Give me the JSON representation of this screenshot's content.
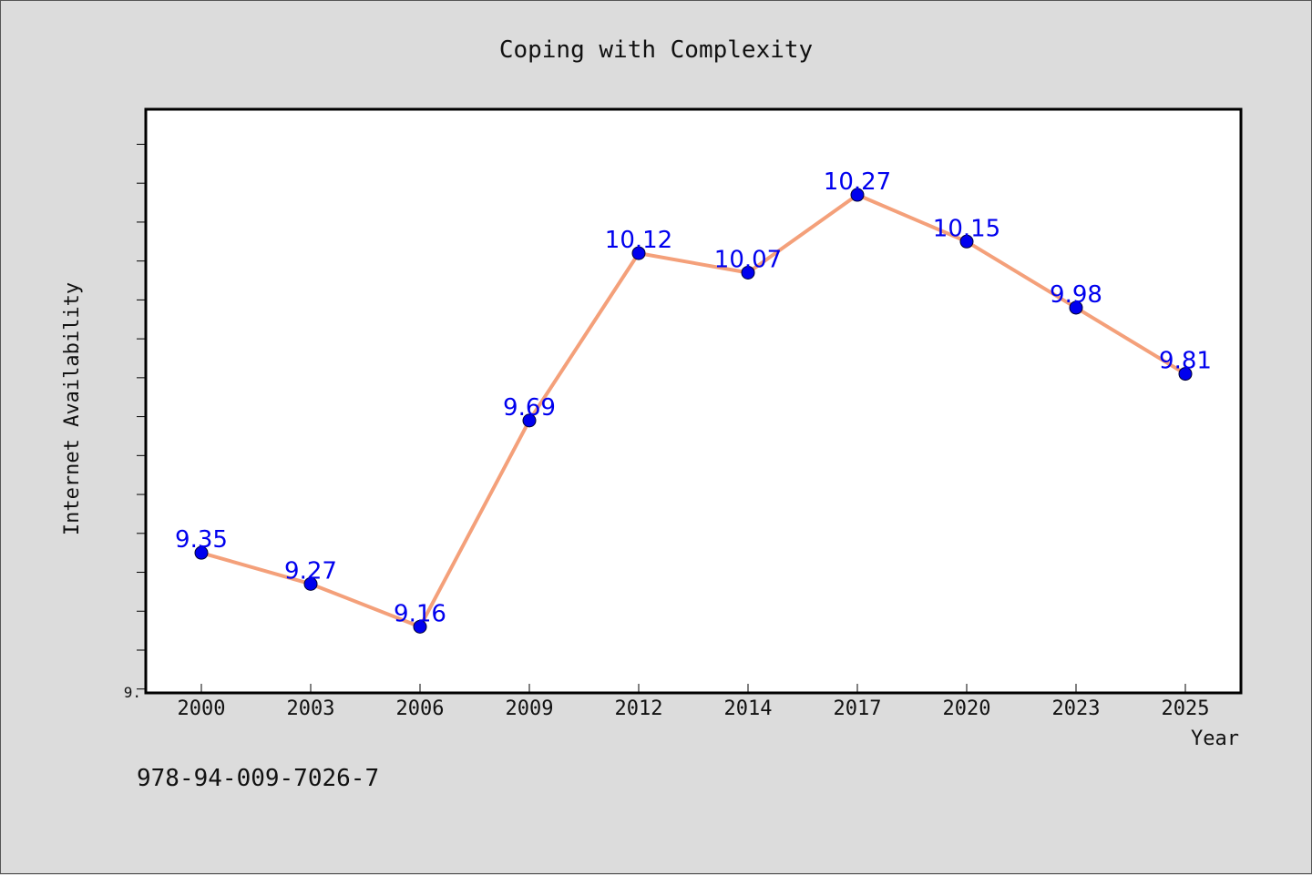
{
  "chart_data": {
    "type": "line",
    "title": "Coping with Complexity",
    "xlabel": "Year",
    "ylabel": "Internet Availability",
    "categories": [
      "2000",
      "2003",
      "2006",
      "2009",
      "2012",
      "2014",
      "2017",
      "2020",
      "2023",
      "2025"
    ],
    "series": [
      {
        "values": [
          9.35,
          9.27,
          9.16,
          9.69,
          10.12,
          10.07,
          10.27,
          10.15,
          9.98,
          9.81
        ],
        "labels": [
          "9.35",
          "9.27",
          "9.16",
          "9.69",
          "10.12",
          "10.07",
          "10.27",
          "10.15",
          "9.98",
          "9.81"
        ]
      }
    ],
    "ylim": [
      8.99,
      10.49
    ],
    "y_tick_label": "9.",
    "grid": false,
    "colors": {
      "line": "#f4a07a",
      "marker": "#0000ee",
      "label": "#0000ee"
    }
  },
  "footer": {
    "isbn": "978-94-009-7026-7"
  }
}
